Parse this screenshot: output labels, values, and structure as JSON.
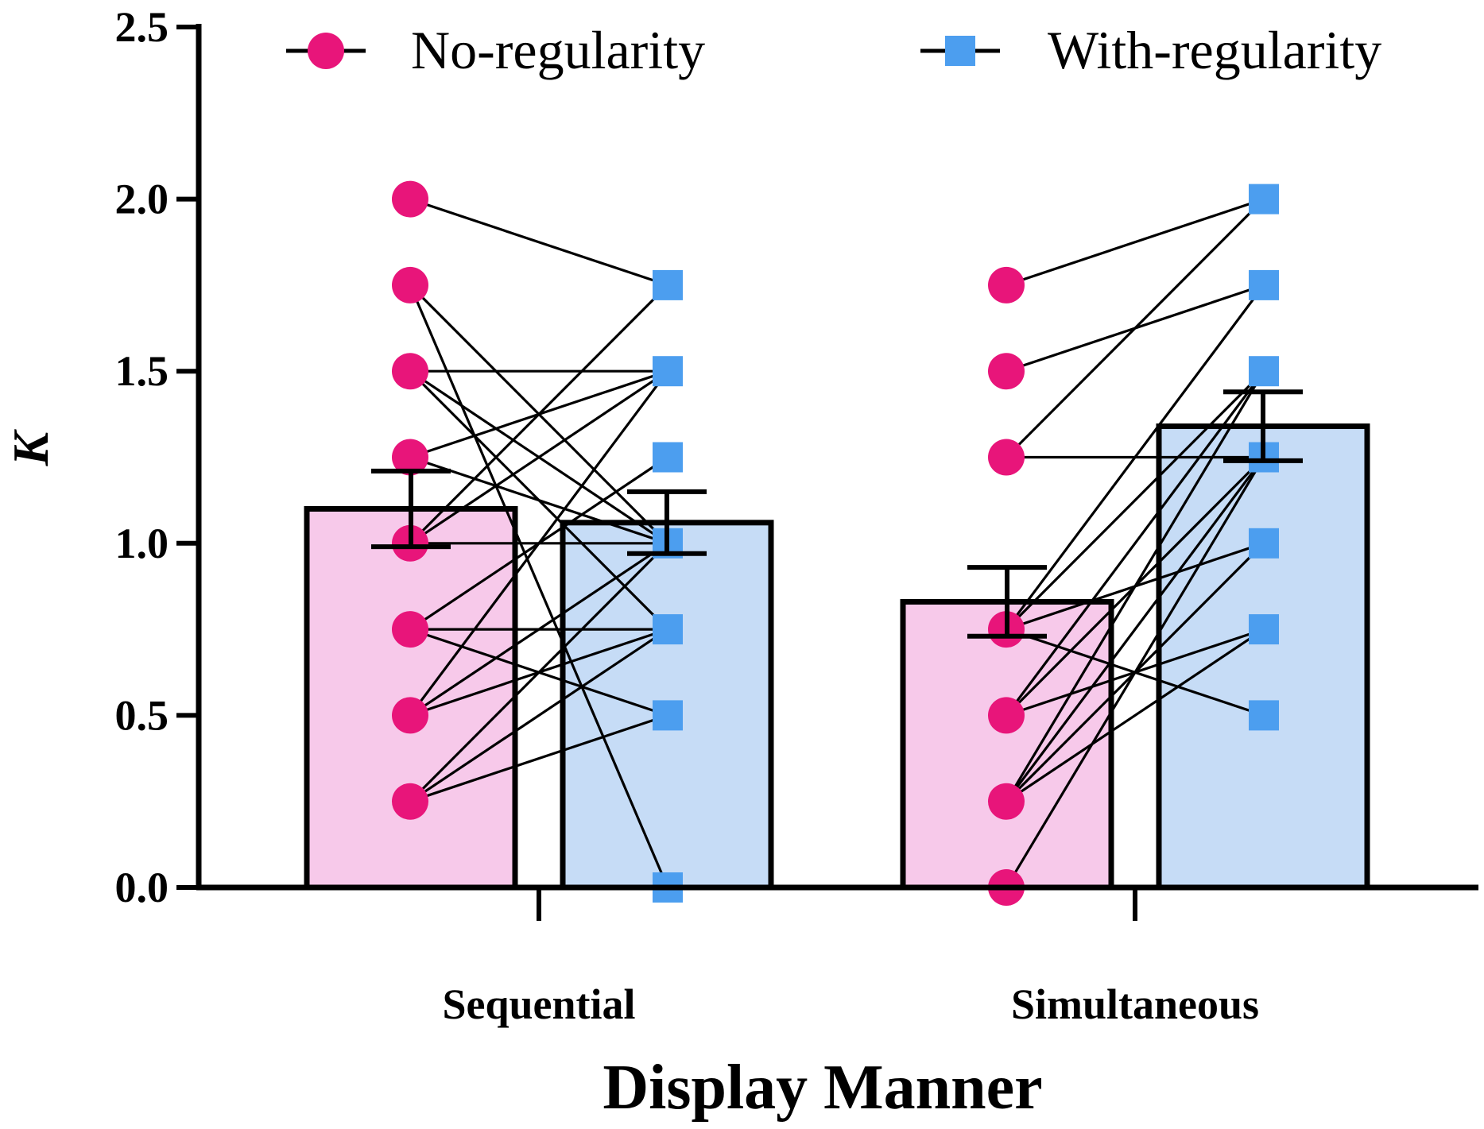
{
  "chart_data": {
    "type": "bar",
    "xlabel": "Display Manner",
    "ylabel": "K",
    "ylim": [
      0,
      2.5
    ],
    "yticks": [
      "0.0",
      "0.5",
      "1.0",
      "1.5",
      "2.0",
      "2.5"
    ],
    "categories": [
      "Sequential",
      "Simultaneous"
    ],
    "legend_position": "top",
    "series": [
      {
        "name": "No-regularity",
        "marker": "circle",
        "color": "#E8157A",
        "bar_fill": "#F7C9EA",
        "values": [
          1.1,
          0.83
        ],
        "error": [
          0.11,
          0.1
        ]
      },
      {
        "name": "With-regularity",
        "marker": "square",
        "color": "#4C9EEF",
        "bar_fill": "#C6DCF6",
        "values": [
          1.06,
          1.34
        ],
        "error": [
          0.09,
          0.1
        ]
      }
    ],
    "paired_points": {
      "Sequential": [
        [
          2.0,
          1.75
        ],
        [
          1.75,
          1.0
        ],
        [
          1.75,
          0.0
        ],
        [
          1.5,
          1.5
        ],
        [
          1.5,
          1.0
        ],
        [
          1.5,
          0.75
        ],
        [
          1.25,
          1.5
        ],
        [
          1.25,
          1.0
        ],
        [
          1.0,
          1.75
        ],
        [
          1.0,
          1.0
        ],
        [
          1.0,
          1.5
        ],
        [
          0.75,
          1.25
        ],
        [
          0.75,
          0.75
        ],
        [
          0.75,
          0.5
        ],
        [
          0.5,
          1.0
        ],
        [
          0.5,
          1.5
        ],
        [
          0.5,
          0.75
        ],
        [
          0.25,
          0.75
        ],
        [
          0.25,
          0.5
        ],
        [
          0.25,
          1.0
        ]
      ],
      "Simultaneous": [
        [
          1.75,
          2.0
        ],
        [
          1.5,
          1.75
        ],
        [
          1.25,
          1.25
        ],
        [
          1.25,
          2.0
        ],
        [
          0.75,
          1.75
        ],
        [
          0.75,
          1.5
        ],
        [
          0.75,
          0.5
        ],
        [
          0.75,
          1.0
        ],
        [
          0.5,
          1.25
        ],
        [
          0.5,
          0.75
        ],
        [
          0.5,
          1.5
        ],
        [
          0.25,
          1.25
        ],
        [
          0.25,
          1.0
        ],
        [
          0.25,
          0.75
        ],
        [
          0.25,
          1.5
        ],
        [
          0.0,
          1.25
        ]
      ]
    }
  }
}
